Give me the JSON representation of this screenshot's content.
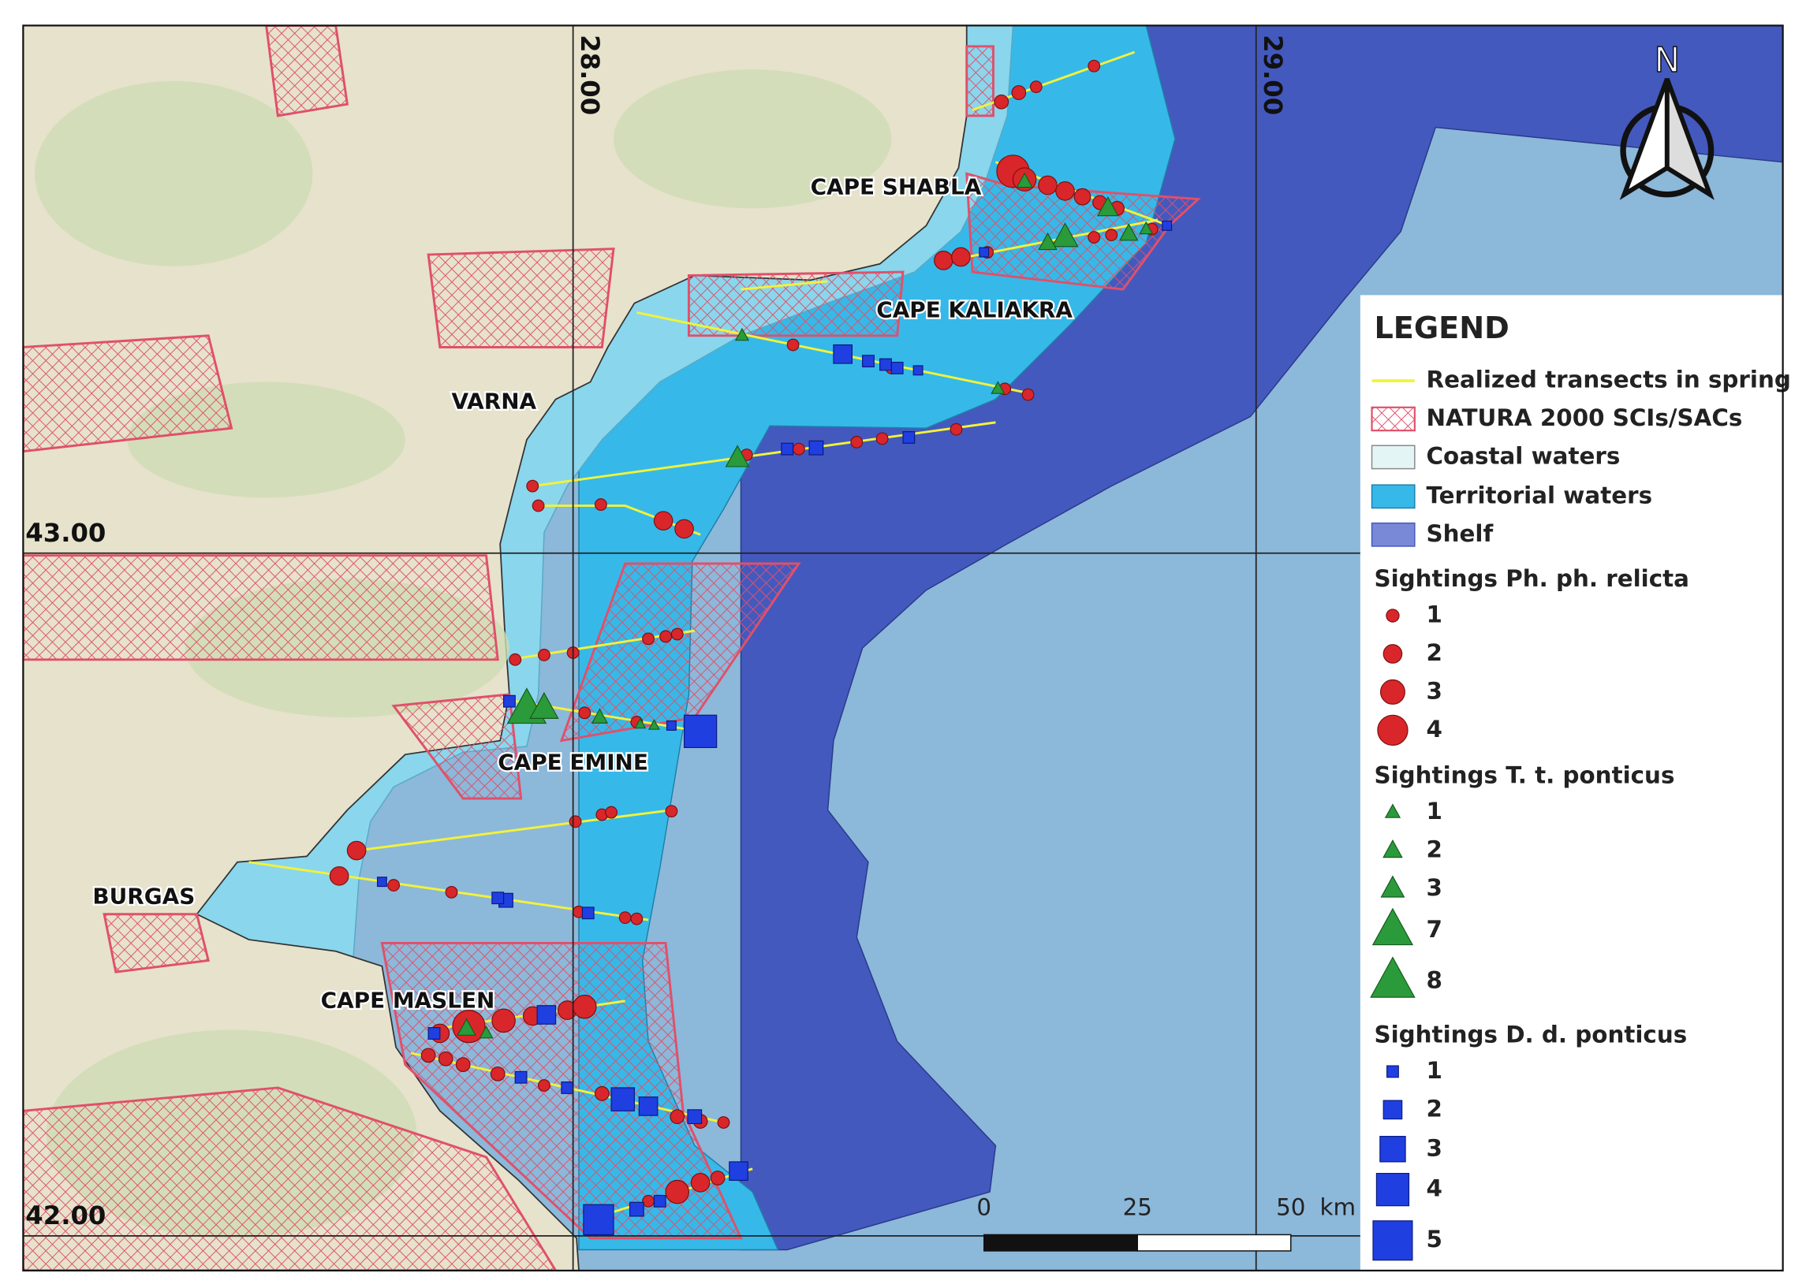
{
  "map": {
    "place_labels": [
      "CAPE SHABLA",
      "CAPE KALIAKRA",
      "VARNA",
      "CAPE EMINE",
      "BURGAS",
      "CAPE MASLEN"
    ],
    "grid_labels": {
      "longitude": [
        "28.00",
        "29.00"
      ],
      "latitude": [
        "43.00",
        "42.00"
      ]
    },
    "north": "N",
    "scale_bar": {
      "ticks": [
        0,
        25,
        50
      ],
      "unit": "km"
    },
    "legend": {
      "title": "LEGEND",
      "layers": [
        "Realized transects in spring",
        "NATURA 2000 SCIs/SACs",
        "Coastal waters",
        "Territorial waters",
        "Shelf"
      ],
      "groups": [
        {
          "title": "Sightings Ph. ph. relicta",
          "sizes": [
            1,
            2,
            3,
            4
          ]
        },
        {
          "title": "Sightings T. t. ponticus",
          "sizes": [
            1,
            2,
            3,
            7,
            8
          ]
        },
        {
          "title": "Sightings D. d. ponticus",
          "sizes": [
            1,
            2,
            3,
            4,
            5
          ]
        }
      ]
    }
  }
}
